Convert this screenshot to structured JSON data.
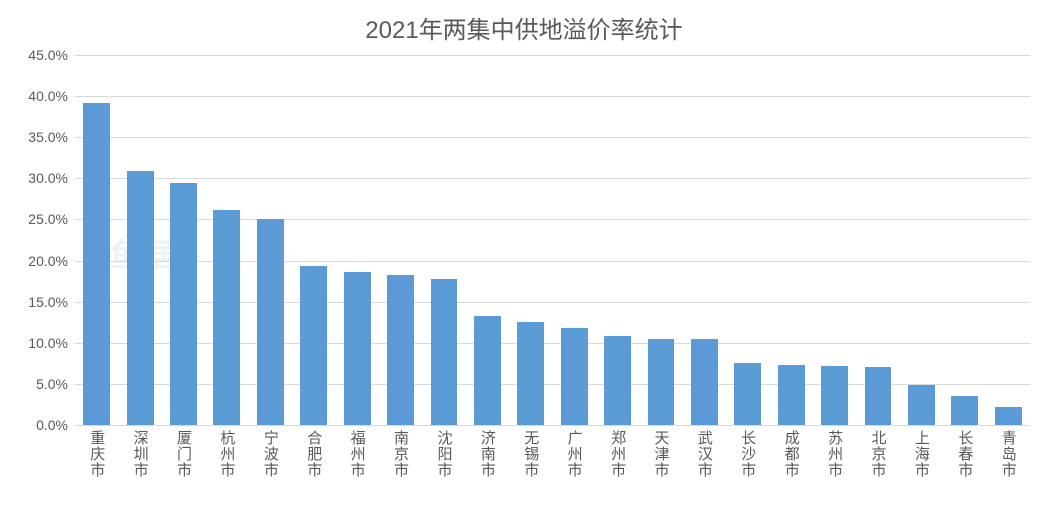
{
  "chart": {
    "type": "bar",
    "title": "2021年两集中供地溢价率统计",
    "title_fontsize": 24,
    "title_color": "#595959",
    "background_color": "#ffffff",
    "grid_color": "#d9d9d9",
    "bar_color": "#5b9bd5",
    "bar_width_ratio": 0.62,
    "axis_label_color": "#595959",
    "axis_label_fontsize": 14,
    "x_label_fontsize": 15,
    "ylim": [
      0,
      45
    ],
    "ytick_step": 5,
    "ytick_format": "percent_one_decimal",
    "y_ticks": [
      "0.0%",
      "5.0%",
      "10.0%",
      "15.0%",
      "20.0%",
      "25.0%",
      "30.0%",
      "35.0%",
      "40.0%",
      "45.0%"
    ],
    "categories": [
      "重庆市",
      "深圳市",
      "厦门市",
      "杭州市",
      "宁波市",
      "合肥市",
      "福州市",
      "南京市",
      "沈阳市",
      "济南市",
      "无锡市",
      "广州市",
      "郑州市",
      "天津市",
      "武汉市",
      "长沙市",
      "成都市",
      "苏州市",
      "北京市",
      "上海市",
      "长春市",
      "青岛市"
    ],
    "values": [
      39.2,
      30.9,
      29.4,
      26.1,
      25.1,
      19.3,
      18.6,
      18.2,
      17.8,
      13.2,
      12.5,
      11.8,
      10.8,
      10.5,
      10.5,
      7.5,
      7.3,
      7.2,
      7.1,
      4.9,
      3.5,
      2.2
    ],
    "watermark_text": "鱼居"
  }
}
